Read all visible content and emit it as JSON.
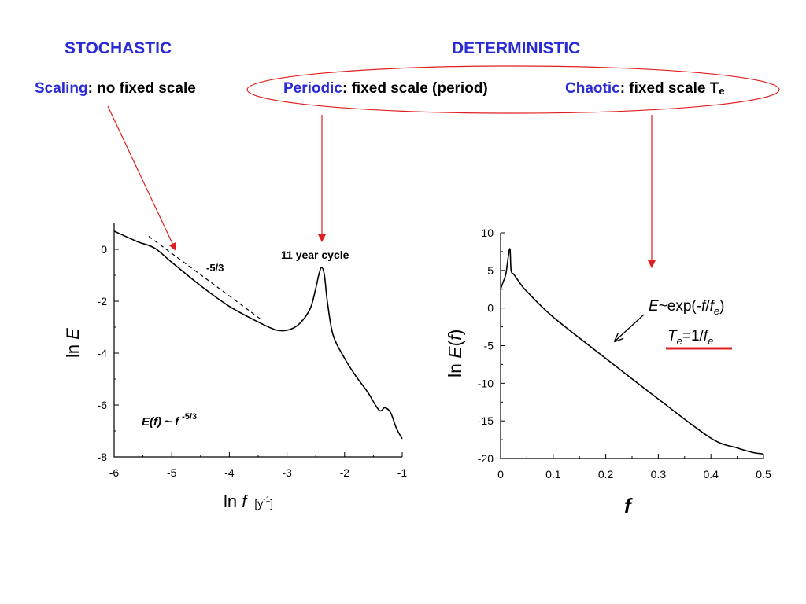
{
  "headings": {
    "stochastic": "STOCHASTIC",
    "deterministic": "DETERMINISTIC"
  },
  "categories": {
    "scaling": {
      "term": "Scaling",
      "desc": ": no fixed scale"
    },
    "periodic": {
      "term": "Periodic",
      "desc": ": fixed scale (period)"
    },
    "chaotic": {
      "term": "Chaotic",
      "desc": ": fixed scale T",
      "sub": "e"
    }
  },
  "colors": {
    "heading": "#2b2bd6",
    "arrow": "#e02020",
    "curve": "#000000"
  },
  "chart_data": [
    {
      "type": "line",
      "xlabel": "ln f",
      "xunit": "[y-1]",
      "ylabel": "ln E",
      "xlim": [
        -6,
        -1
      ],
      "ylim": [
        -8,
        1
      ],
      "xticks": [
        -6,
        -5,
        -4,
        -3,
        -2,
        -1
      ],
      "yticks": [
        0,
        -2,
        -4,
        -6,
        -8
      ],
      "series": [
        {
          "x": [
            -6.0,
            -5.6,
            -5.3,
            -5.0,
            -4.5,
            -4.0,
            -3.5,
            -3.2,
            -3.0,
            -2.8,
            -2.6,
            -2.5,
            -2.45,
            -2.4,
            -2.35,
            -2.3,
            -2.2,
            -2.0,
            -1.8,
            -1.6,
            -1.4,
            -1.3,
            -1.2,
            -1.1,
            -1.0
          ],
          "y": [
            0.7,
            0.3,
            0.05,
            -0.5,
            -1.4,
            -2.2,
            -2.8,
            -3.1,
            -3.12,
            -2.9,
            -2.3,
            -1.5,
            -1.0,
            -0.7,
            -1.0,
            -2.0,
            -3.3,
            -4.2,
            -4.9,
            -5.5,
            -6.2,
            -6.1,
            -6.3,
            -6.9,
            -7.3
          ]
        }
      ],
      "reference_line": {
        "x": [
          -5.4,
          -3.45
        ],
        "y": [
          0.5,
          -2.7
        ],
        "style": "dashed",
        "label": "-5/3"
      },
      "annotations": {
        "peak": "11 year cycle",
        "formula": "E(f) ~ f",
        "formula_exp": "-5/3"
      }
    },
    {
      "type": "line",
      "xlabel": "f",
      "ylabel": "ln E(f)",
      "xlim": [
        0,
        0.5
      ],
      "ylim": [
        -20,
        10
      ],
      "xticks": [
        0,
        0.1,
        0.2,
        0.3,
        0.4,
        0.5
      ],
      "yticks": [
        10,
        5,
        0,
        -5,
        -10,
        -15,
        -20
      ],
      "series": [
        {
          "x": [
            0,
            0.005,
            0.01,
            0.015,
            0.018,
            0.02,
            0.025,
            0.03,
            0.04,
            0.05,
            0.1,
            0.2,
            0.3,
            0.4,
            0.45,
            0.48,
            0.5
          ],
          "y": [
            2.5,
            3.5,
            4.5,
            7.0,
            7.8,
            5.0,
            4.5,
            4.0,
            3.0,
            2.2,
            -1.2,
            -6.7,
            -12.1,
            -17.3,
            -18.6,
            -19.2,
            -19.4
          ]
        }
      ],
      "annotations": {
        "formula_top": "E~exp(-f/fe)",
        "formula_bottom": "Te=1/fe"
      }
    }
  ]
}
